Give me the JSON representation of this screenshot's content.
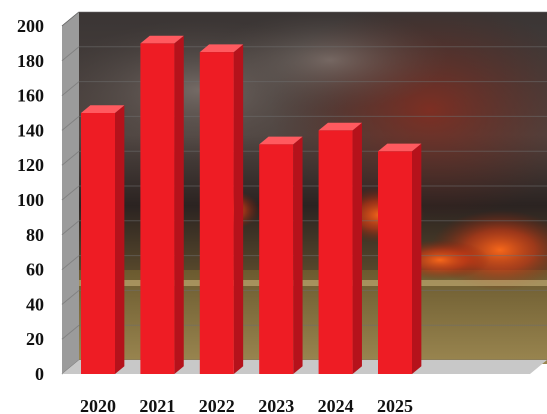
{
  "chart_data": {
    "type": "bar",
    "categories": [
      "2020",
      "2021",
      "2022",
      "2023",
      "2024",
      "2025"
    ],
    "values": [
      150,
      190,
      185,
      132,
      140,
      128
    ],
    "title": "",
    "xlabel": "",
    "ylabel": "",
    "ylim": [
      0,
      200
    ],
    "yticks": [
      "0",
      "20",
      "40",
      "60",
      "80",
      "100",
      "120",
      "140",
      "160",
      "180",
      "200"
    ],
    "grid": true,
    "legend": "none",
    "style": "3d",
    "background": "photo of a wildfire",
    "colors": {
      "bar_front": "#ee1c24",
      "bar_side": "#b5121b",
      "bar_top": "#ff5a5f",
      "floor": "#c8c8c8",
      "wall_left": "#8a8a8a"
    }
  }
}
